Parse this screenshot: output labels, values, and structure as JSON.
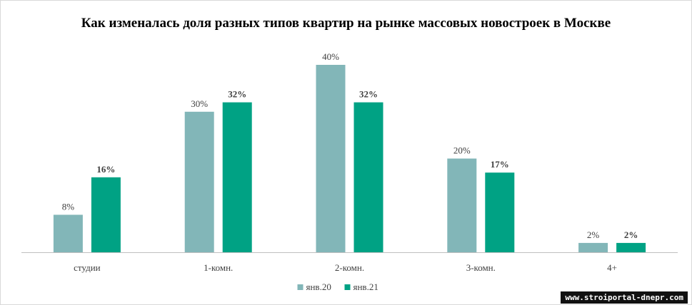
{
  "chart_data": {
    "type": "bar",
    "title": "Как изменалась доля разных типов квартир на рынке массовых новостроек в Москве",
    "categories": [
      "студии",
      "1-комн.",
      "2-комн.",
      "3-комн.",
      "4+"
    ],
    "series": [
      {
        "name": "янв.20",
        "values": [
          8,
          30,
          40,
          20,
          2
        ],
        "labels": [
          "8%",
          "30%",
          "40%",
          "20%",
          "2%"
        ],
        "color": "#82b6b8",
        "bold": false
      },
      {
        "name": "янв.21",
        "values": [
          16,
          32,
          32,
          17,
          2
        ],
        "labels": [
          "16%",
          "32%",
          "32%",
          "17%",
          "2%"
        ],
        "color": "#00a284",
        "bold": true
      }
    ],
    "ylim": [
      0,
      40
    ],
    "grid": false,
    "legend_position": "bottom"
  },
  "watermark": "www.stroiportal-dnepr.com"
}
